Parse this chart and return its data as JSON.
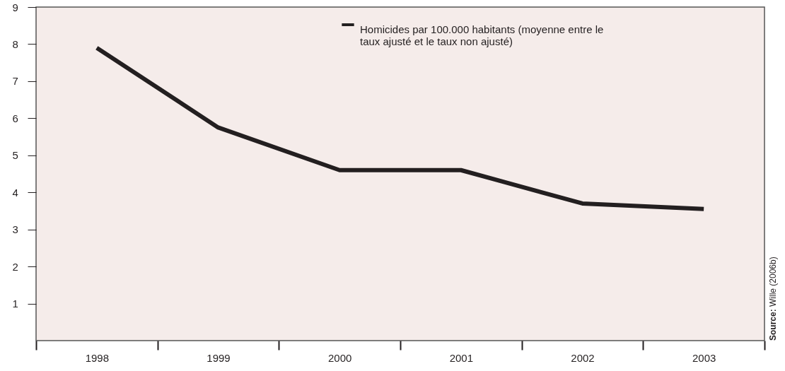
{
  "chart_data": {
    "type": "line",
    "categories": [
      "1998",
      "1999",
      "2000",
      "2001",
      "2002",
      "2003"
    ],
    "series": [
      {
        "name": "Homicides par 100.000 habitants (moyenne entre le taux ajusté et le taux non ajusté)",
        "color": "#231f20",
        "values": [
          7.9,
          5.75,
          4.6,
          4.6,
          3.7,
          3.55
        ]
      }
    ],
    "ylim": [
      0,
      9
    ],
    "yticks": [
      1,
      2,
      3,
      4,
      5,
      6,
      7,
      8,
      9
    ],
    "grid": false,
    "legend": "top",
    "marker": "none",
    "line_style": "solid",
    "annotations": [
      "Source: Wille (2006b)"
    ]
  }
}
